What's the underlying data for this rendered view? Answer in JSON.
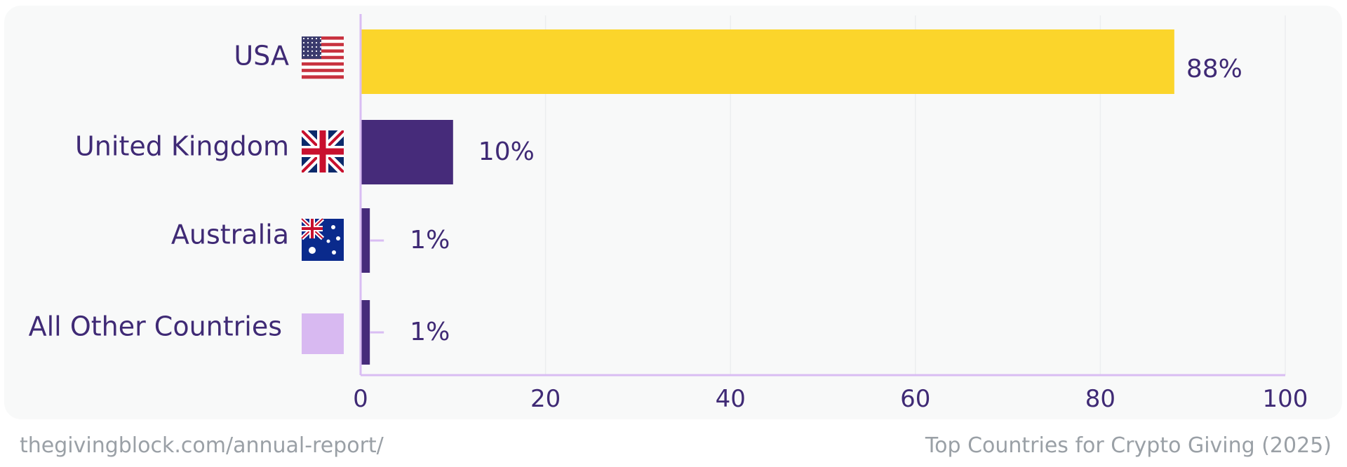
{
  "footer": {
    "url": "thegivingblock.com/annual-report/",
    "caption": "Top Countries for Crypto Giving (2025)"
  },
  "colors": {
    "highlight": "#fbd52b",
    "bar": "#462b7a",
    "text": "#3f2a75",
    "axis": "#d9bdf3",
    "other_swatch": "#d8b9f1",
    "background": "#f8f9f9"
  },
  "chart_data": {
    "type": "bar",
    "orientation": "horizontal",
    "categories": [
      "USA",
      "United Kingdom",
      "Australia",
      "All Other Countries"
    ],
    "category_icons": [
      "us-flag-icon",
      "uk-flag-icon",
      "australia-flag-icon",
      "other-countries-swatch"
    ],
    "values": [
      88,
      10,
      1,
      1
    ],
    "value_labels": [
      "88%",
      "10%",
      "1%",
      "1%"
    ],
    "highlight_index": 0,
    "xlim": [
      0,
      100
    ],
    "xticks": [
      0,
      20,
      40,
      60,
      80,
      100
    ],
    "xtick_labels": [
      "0",
      "20",
      "40",
      "60",
      "80",
      "100"
    ],
    "grid": "vertical",
    "title": "",
    "xlabel": "",
    "ylabel": ""
  }
}
